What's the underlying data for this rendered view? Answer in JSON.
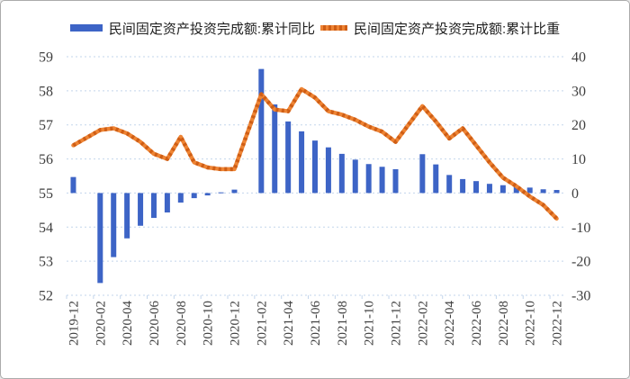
{
  "legend": [
    {
      "label": "民间固定资产投资完成额:累计同比",
      "marker": "bar-swatch",
      "color": "#3d64c6"
    },
    {
      "label": "民间固定资产投资完成额:累计比重",
      "marker": "line-swatch",
      "color": "#ee8434"
    }
  ],
  "colors": {
    "bar": "#3d64c6",
    "line_base": "#ee8434",
    "line_dash": "#cf5e15",
    "grid": "#c3d5eb",
    "axis_text": "#3f3f3f"
  },
  "chart_data": {
    "type": "combo",
    "categories": [
      "2019-12",
      "2020-01",
      "2020-02",
      "2020-03",
      "2020-04",
      "2020-05",
      "2020-06",
      "2020-07",
      "2020-08",
      "2020-09",
      "2020-10",
      "2020-11",
      "2020-12",
      "2021-01",
      "2021-02",
      "2021-03",
      "2021-04",
      "2021-05",
      "2021-06",
      "2021-07",
      "2021-08",
      "2021-09",
      "2021-10",
      "2021-11",
      "2021-12",
      "2022-01",
      "2022-02",
      "2022-03",
      "2022-04",
      "2022-05",
      "2022-06",
      "2022-07",
      "2022-08",
      "2022-09",
      "2022-10",
      "2022-11",
      "2022-12"
    ],
    "x_tick_every": 2,
    "series": [
      {
        "name": "民间固定资产投资完成额:累计同比",
        "type": "bar",
        "axis": "right",
        "values": [
          4.7,
          null,
          -26.4,
          -18.8,
          -13.3,
          -9.6,
          -7.3,
          -5.7,
          -2.8,
          -1.5,
          -0.7,
          0.2,
          1.0,
          null,
          36.4,
          26.0,
          21.0,
          18.1,
          15.4,
          13.4,
          11.5,
          9.8,
          8.5,
          7.7,
          7.0,
          null,
          11.4,
          8.4,
          5.3,
          4.1,
          3.5,
          2.7,
          2.3,
          2.0,
          1.6,
          1.1,
          0.9
        ]
      },
      {
        "name": "民间固定资产投资完成额:累计比重",
        "type": "line",
        "axis": "left",
        "values": [
          56.4,
          null,
          56.85,
          56.9,
          56.75,
          56.5,
          56.15,
          56.0,
          56.65,
          55.9,
          55.75,
          55.7,
          55.7,
          null,
          57.9,
          57.45,
          57.4,
          58.05,
          57.8,
          57.4,
          57.3,
          57.15,
          56.95,
          56.8,
          56.5,
          null,
          57.55,
          57.1,
          56.6,
          56.9,
          56.4,
          55.9,
          55.45,
          55.2,
          54.9,
          54.65,
          54.25
        ]
      }
    ],
    "left_axis": {
      "min": 52,
      "max": 59,
      "ticks": [
        59,
        58,
        57,
        56,
        55,
        54,
        53,
        52
      ]
    },
    "right_axis": {
      "min": -30,
      "max": 40,
      "ticks": [
        40,
        30,
        20,
        10,
        0,
        -10,
        -20,
        -30
      ]
    },
    "grid": "dashed-horizontal",
    "legend_position": "top"
  }
}
